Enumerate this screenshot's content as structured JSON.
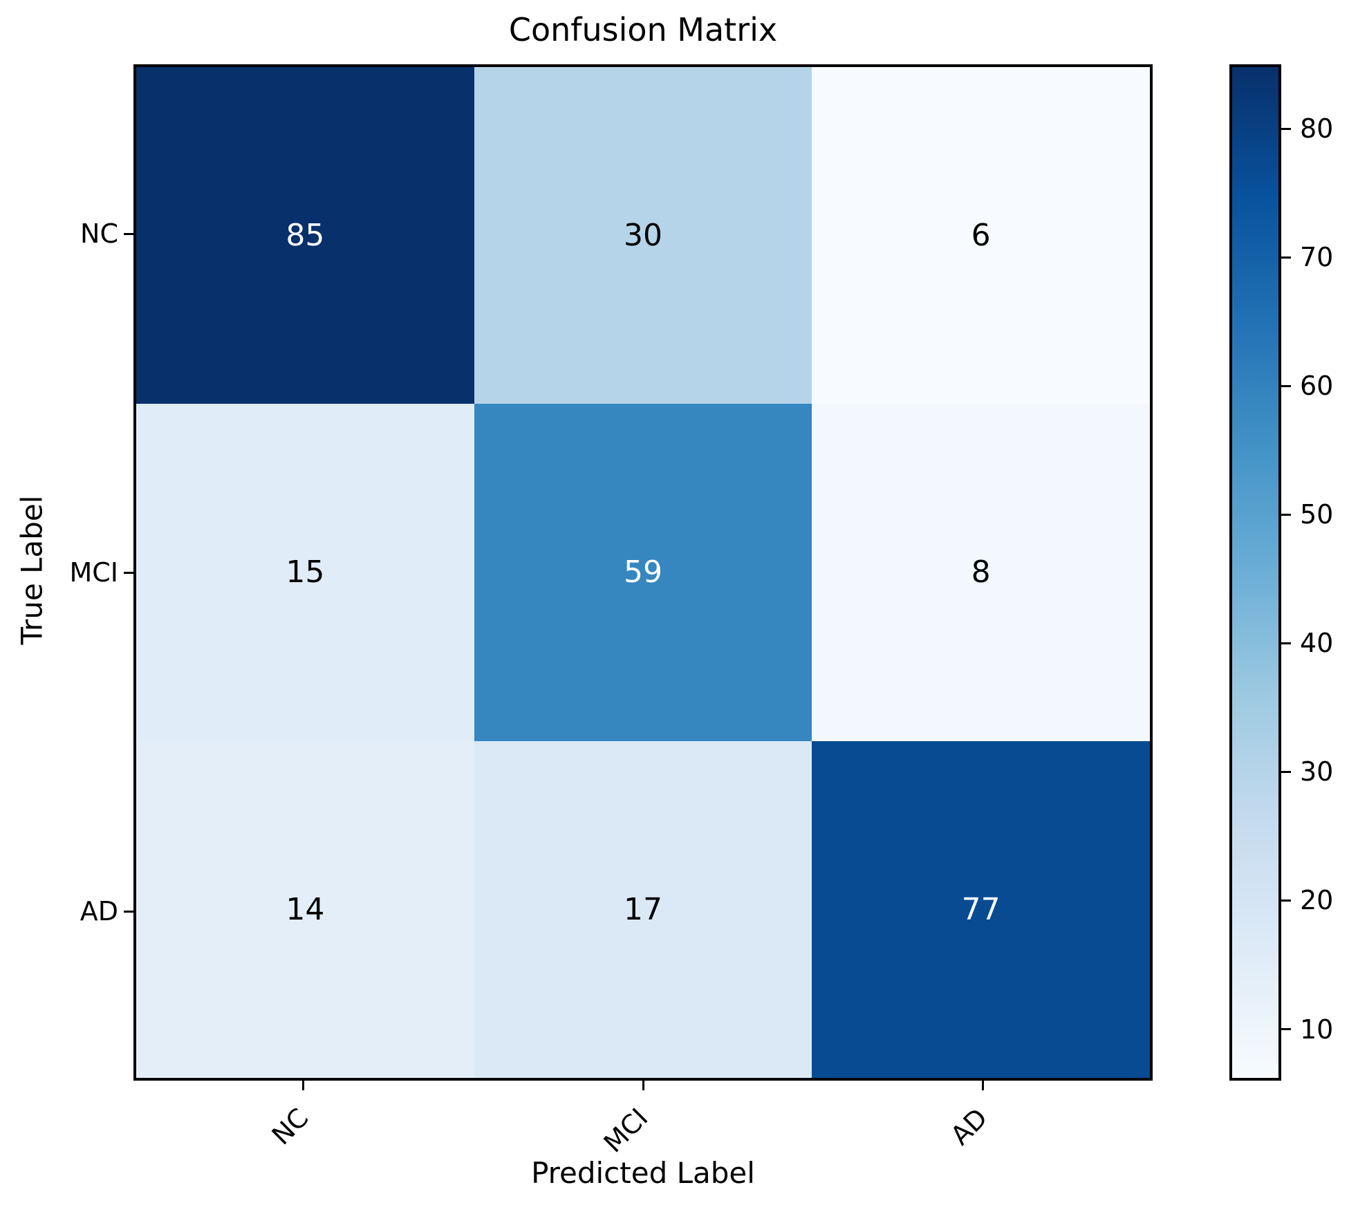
{
  "chart_data": {
    "type": "heatmap",
    "title": "Confusion Matrix",
    "xlabel": "Predicted Label",
    "ylabel": "True Label",
    "x_tick_labels": [
      "NC",
      "MCI",
      "AD"
    ],
    "y_tick_labels": [
      "NC",
      "MCI",
      "AD"
    ],
    "matrix": [
      [
        85,
        30,
        6
      ],
      [
        15,
        59,
        8
      ],
      [
        14,
        17,
        77
      ]
    ],
    "vmin": 6,
    "vmax": 85,
    "colormap": "Blues",
    "colormap_anchors": [
      "#f7fbff",
      "#deebf7",
      "#c6dbef",
      "#9ecae1",
      "#6baed6",
      "#4292c6",
      "#2171b5",
      "#08519c",
      "#08306b"
    ],
    "colorbar_ticks": [
      10,
      20,
      30,
      40,
      50,
      60,
      70,
      80
    ],
    "x_tick_rotation_deg": 45,
    "grid": false,
    "annotation_color_on_dark": "#ffffff",
    "annotation_color_on_light": "#000000",
    "annotation_switch_threshold": 0.5,
    "spine_color": "#000000",
    "background_color": "#ffffff"
  }
}
